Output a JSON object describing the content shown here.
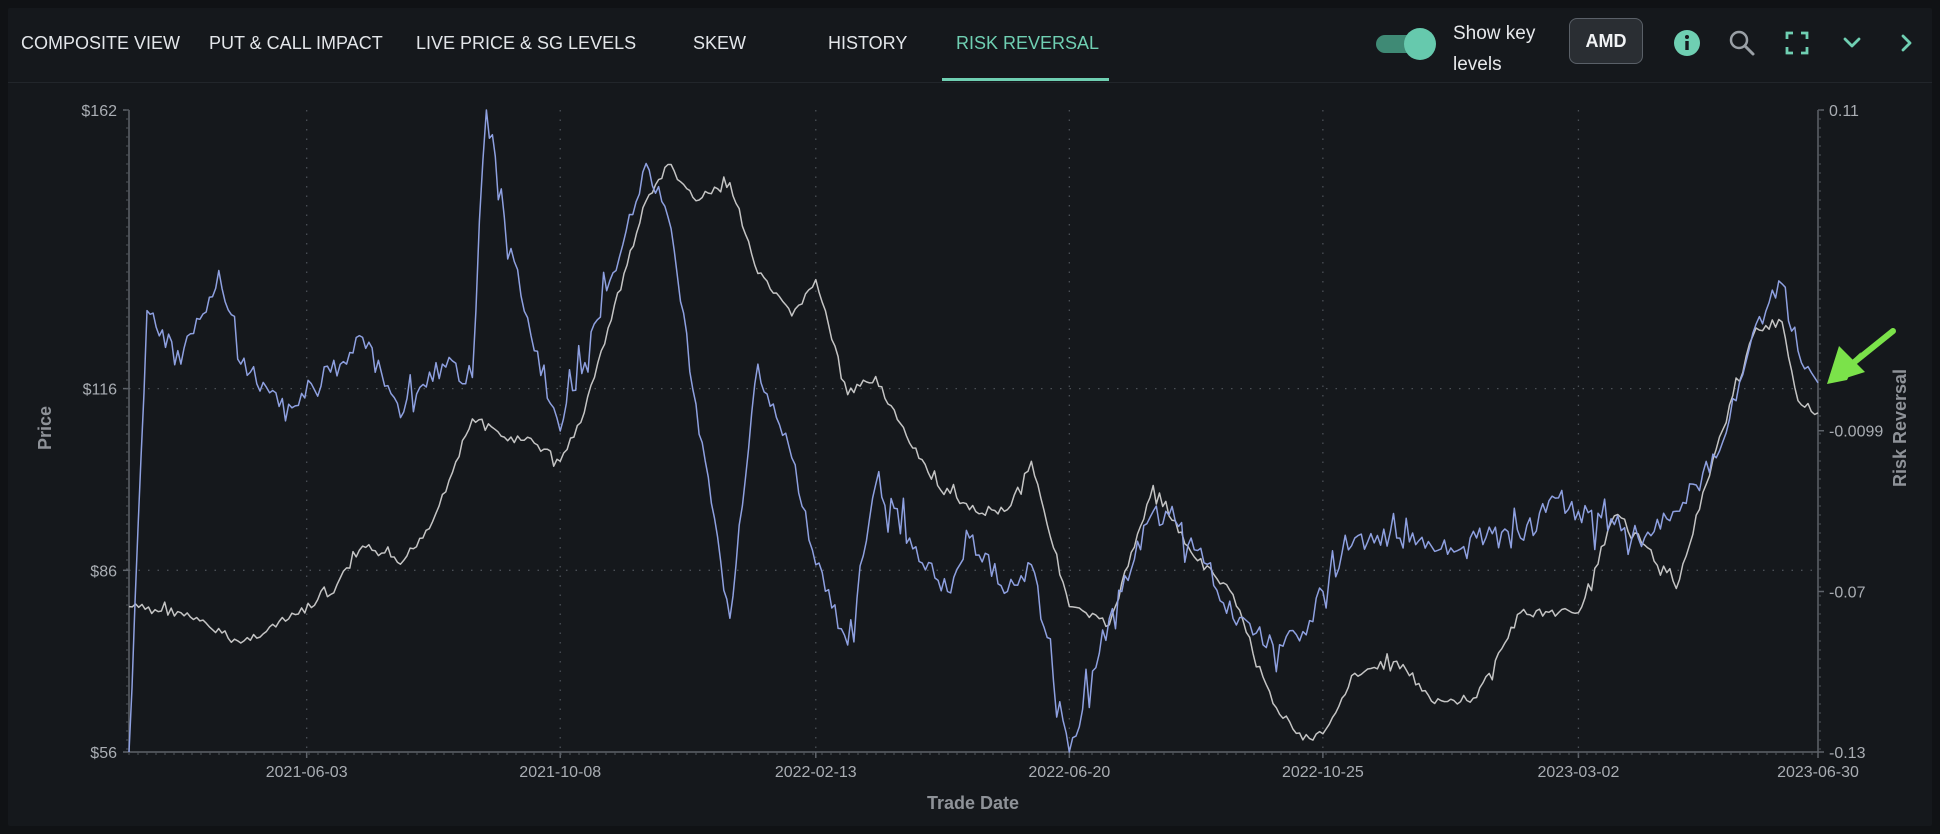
{
  "tabs": [
    {
      "label": "COMPOSITE VIEW",
      "active": false
    },
    {
      "label": "PUT & CALL IMPACT",
      "active": false
    },
    {
      "label": "LIVE PRICE & SG LEVELS",
      "active": false
    },
    {
      "label": "SKEW",
      "active": false
    },
    {
      "label": "HISTORY",
      "active": false
    },
    {
      "label": "RISK REVERSAL",
      "active": true
    }
  ],
  "controls": {
    "show_key_levels_label": "Show key levels",
    "show_key_levels_on": true,
    "ticker": "AMD"
  },
  "icons": [
    "info-icon",
    "zoom-icon",
    "fullscreen-icon",
    "chevron-down-icon",
    "chevron-right-icon"
  ],
  "colors": {
    "accent": "#6fcfb2",
    "price_series": "#c4c4c4",
    "risk_reversal_series": "#8ea0e0",
    "annotation_arrow": "#7be24a"
  },
  "chart_data": {
    "type": "line",
    "xlabel": "Trade Date",
    "ylabel_left": "Price",
    "ylabel_right": "Risk Reversal",
    "x_ticks": [
      "2021-06-03",
      "2021-10-08",
      "2022-02-13",
      "2022-06-20",
      "2022-10-25",
      "2023-03-02",
      "2023-06-30"
    ],
    "x_range": [
      "2021-03-06",
      "2023-06-30"
    ],
    "left_axis": {
      "ticks": [
        "$162",
        "$116",
        "$86",
        "$56"
      ],
      "tick_values": [
        162,
        116,
        86,
        56
      ],
      "range": [
        56,
        162
      ]
    },
    "right_axis": {
      "ticks": [
        "0.11",
        "-0.0099",
        "-0.07",
        "-0.13"
      ],
      "tick_values": [
        0.11,
        -0.0099,
        -0.07,
        -0.13
      ],
      "range": [
        -0.13,
        0.11
      ]
    },
    "grid": true,
    "series": [
      {
        "key": "price",
        "axis": "left",
        "points": [
          [
            "2021-03-06",
            80
          ],
          [
            "2021-04-01",
            79
          ],
          [
            "2021-05-01",
            74
          ],
          [
            "2021-05-25",
            78
          ],
          [
            "2021-06-15",
            82
          ],
          [
            "2021-07-01",
            90
          ],
          [
            "2021-07-20",
            87
          ],
          [
            "2021-08-05",
            94
          ],
          [
            "2021-08-25",
            111
          ],
          [
            "2021-09-10",
            108
          ],
          [
            "2021-09-25",
            107
          ],
          [
            "2021-10-08",
            104
          ],
          [
            "2021-10-20",
            112
          ],
          [
            "2021-11-01",
            126
          ],
          [
            "2021-11-20",
            147
          ],
          [
            "2021-12-01",
            153
          ],
          [
            "2021-12-15",
            147
          ],
          [
            "2022-01-01",
            150
          ],
          [
            "2022-01-15",
            135
          ],
          [
            "2022-02-01",
            128
          ],
          [
            "2022-02-13",
            134
          ],
          [
            "2022-03-01",
            115
          ],
          [
            "2022-03-15",
            118
          ],
          [
            "2022-04-01",
            107
          ],
          [
            "2022-04-15",
            100
          ],
          [
            "2022-05-01",
            96
          ],
          [
            "2022-05-20",
            96
          ],
          [
            "2022-06-01",
            104
          ],
          [
            "2022-06-20",
            80
          ],
          [
            "2022-07-10",
            77
          ],
          [
            "2022-08-01",
            100
          ],
          [
            "2022-08-20",
            89
          ],
          [
            "2022-09-10",
            82
          ],
          [
            "2022-09-30",
            64
          ],
          [
            "2022-10-15",
            58
          ],
          [
            "2022-10-25",
            59
          ],
          [
            "2022-11-10",
            69
          ],
          [
            "2022-12-01",
            71
          ],
          [
            "2022-12-20",
            64
          ],
          [
            "2023-01-10",
            65
          ],
          [
            "2023-02-01",
            79
          ],
          [
            "2023-02-20",
            79
          ],
          [
            "2023-03-02",
            79
          ],
          [
            "2023-03-20",
            95
          ],
          [
            "2023-04-01",
            92
          ],
          [
            "2023-04-20",
            83
          ],
          [
            "2023-05-10",
            106
          ],
          [
            "2023-05-30",
            126
          ],
          [
            "2023-06-12",
            127
          ],
          [
            "2023-06-20",
            114
          ],
          [
            "2023-06-30",
            112
          ]
        ]
      },
      {
        "key": "risk_reversal",
        "axis": "right",
        "points": [
          [
            "2021-03-06",
            -0.13
          ],
          [
            "2021-03-15",
            0.035
          ],
          [
            "2021-04-01",
            0.015
          ],
          [
            "2021-04-20",
            0.05
          ],
          [
            "2021-05-01",
            0.015
          ],
          [
            "2021-05-25",
            0.0
          ],
          [
            "2021-06-15",
            0.012
          ],
          [
            "2021-07-01",
            0.025
          ],
          [
            "2021-07-20",
            -0.005
          ],
          [
            "2021-08-10",
            0.015
          ],
          [
            "2021-08-25",
            0.01
          ],
          [
            "2021-09-01",
            0.12
          ],
          [
            "2021-09-10",
            0.07
          ],
          [
            "2021-09-25",
            0.02
          ],
          [
            "2021-10-08",
            -0.01
          ],
          [
            "2021-10-25",
            0.03
          ],
          [
            "2021-11-05",
            0.05
          ],
          [
            "2021-11-20",
            0.09
          ],
          [
            "2021-12-01",
            0.07
          ],
          [
            "2021-12-15",
            0.0
          ],
          [
            "2022-01-01",
            -0.08
          ],
          [
            "2022-01-15",
            0.015
          ],
          [
            "2022-02-01",
            -0.02
          ],
          [
            "2022-02-13",
            -0.06
          ],
          [
            "2022-03-01",
            -0.09
          ],
          [
            "2022-03-15",
            -0.03
          ],
          [
            "2022-04-01",
            -0.05
          ],
          [
            "2022-04-20",
            -0.07
          ],
          [
            "2022-05-01",
            -0.05
          ],
          [
            "2022-05-20",
            -0.07
          ],
          [
            "2022-06-01",
            -0.06
          ],
          [
            "2022-06-20",
            -0.13
          ],
          [
            "2022-07-10",
            -0.08
          ],
          [
            "2022-08-01",
            -0.04
          ],
          [
            "2022-08-20",
            -0.05
          ],
          [
            "2022-09-10",
            -0.08
          ],
          [
            "2022-09-30",
            -0.09
          ],
          [
            "2022-10-15",
            -0.085
          ],
          [
            "2022-10-25",
            -0.07
          ],
          [
            "2022-11-10",
            -0.05
          ],
          [
            "2022-12-01",
            -0.05
          ],
          [
            "2022-12-20",
            -0.055
          ],
          [
            "2023-01-10",
            -0.05
          ],
          [
            "2023-02-01",
            -0.05
          ],
          [
            "2023-02-20",
            -0.035
          ],
          [
            "2023-03-02",
            -0.04
          ],
          [
            "2023-03-20",
            -0.045
          ],
          [
            "2023-04-01",
            -0.05
          ],
          [
            "2023-04-20",
            -0.04
          ],
          [
            "2023-05-10",
            -0.02
          ],
          [
            "2023-05-30",
            0.03
          ],
          [
            "2023-06-12",
            0.045
          ],
          [
            "2023-06-20",
            0.02
          ],
          [
            "2023-06-30",
            0.008
          ]
        ]
      }
    ]
  }
}
